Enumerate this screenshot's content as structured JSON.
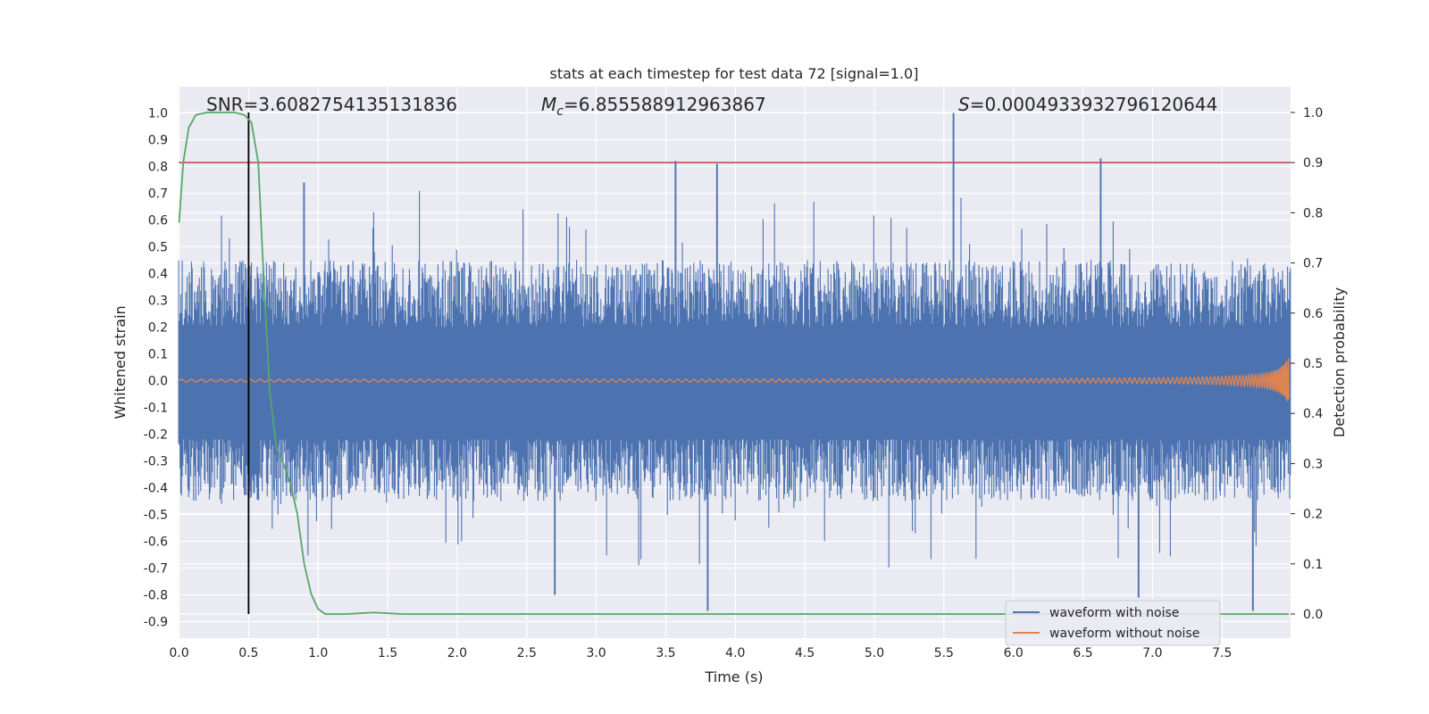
{
  "chart_data": {
    "type": "line",
    "title": "stats at each timestep for test data 72 [signal=1.0]",
    "xlabel": "Time (s)",
    "ylabel": "Whitened strain",
    "y2label": "Detection probability",
    "xlim": [
      0.0,
      8.0
    ],
    "ylim": [
      -0.96,
      1.09
    ],
    "y2lim": [
      -0.05,
      1.05
    ],
    "xticks": [
      "0.0",
      "0.5",
      "1.0",
      "1.5",
      "2.0",
      "2.5",
      "3.0",
      "3.5",
      "4.0",
      "4.5",
      "5.0",
      "5.5",
      "6.0",
      "6.5",
      "7.0",
      "7.5"
    ],
    "yticks": [
      "1.0",
      "0.9",
      "0.8",
      "0.7",
      "0.6",
      "0.5",
      "0.4",
      "0.3",
      "0.2",
      "0.1",
      "0.0",
      "-0.1",
      "-0.2",
      "-0.3",
      "-0.4",
      "-0.5",
      "-0.6",
      "-0.7",
      "-0.8",
      "-0.9"
    ],
    "y2ticks": [
      "1.0",
      "0.9",
      "0.8",
      "0.7",
      "0.6",
      "0.5",
      "0.4",
      "0.3",
      "0.2",
      "0.1",
      "0.0"
    ],
    "annotations": {
      "snr_label": "SNR=3.6082754135131836",
      "mc_symbol": "M",
      "mc_sub": "c",
      "mc_value": "=6.855588912963867",
      "s_symbol": "S",
      "s_value": "=0.0004933932796120644"
    },
    "legend": {
      "placement": "lower-right",
      "entries": [
        "waveform with noise",
        "waveform without noise"
      ]
    },
    "colors": {
      "noise": "#4c72b0",
      "clean": "#dd8452",
      "probability": "#55a868",
      "threshold": "#c44e52",
      "marker": "#000000",
      "background": "#eaeaf2",
      "grid": "#ffffff"
    },
    "noise_envelope": {
      "typical_max": 0.45,
      "typical_min": -0.45,
      "peaks": [
        {
          "x": 3.57,
          "y": 0.82
        },
        {
          "x": 3.87,
          "y": 0.81
        },
        {
          "x": 5.57,
          "y": 1.0
        },
        {
          "x": 6.63,
          "y": 0.83
        },
        {
          "x": 0.9,
          "y": 0.74
        },
        {
          "x": 3.8,
          "y": -0.86
        },
        {
          "x": 7.72,
          "y": -0.86
        },
        {
          "x": 6.9,
          "y": -0.81
        },
        {
          "x": 2.7,
          "y": -0.8
        }
      ]
    },
    "clean_waveform": {
      "base_amplitude": 0.004,
      "end_amplitude": 0.09,
      "merger_time": 7.98
    },
    "threshold_probability": 0.9,
    "marker_time": 0.5,
    "probability": {
      "x": [
        0.0,
        0.03,
        0.07,
        0.12,
        0.2,
        0.3,
        0.4,
        0.47,
        0.52,
        0.57,
        0.6,
        0.65,
        0.7,
        0.75,
        0.8,
        0.85,
        0.9,
        0.95,
        1.0,
        1.05,
        1.2,
        1.4,
        1.6,
        2.0,
        3.0,
        4.0,
        5.0,
        6.0,
        7.0,
        7.98
      ],
      "y": [
        0.78,
        0.9,
        0.97,
        0.995,
        1.0,
        1.0,
        1.0,
        0.995,
        0.98,
        0.9,
        0.72,
        0.45,
        0.33,
        0.3,
        0.26,
        0.2,
        0.1,
        0.04,
        0.01,
        0.0,
        0.0,
        0.003,
        0.0,
        0.0,
        0.0,
        0.0,
        0.0,
        0.0,
        0.0,
        0.0
      ]
    }
  }
}
